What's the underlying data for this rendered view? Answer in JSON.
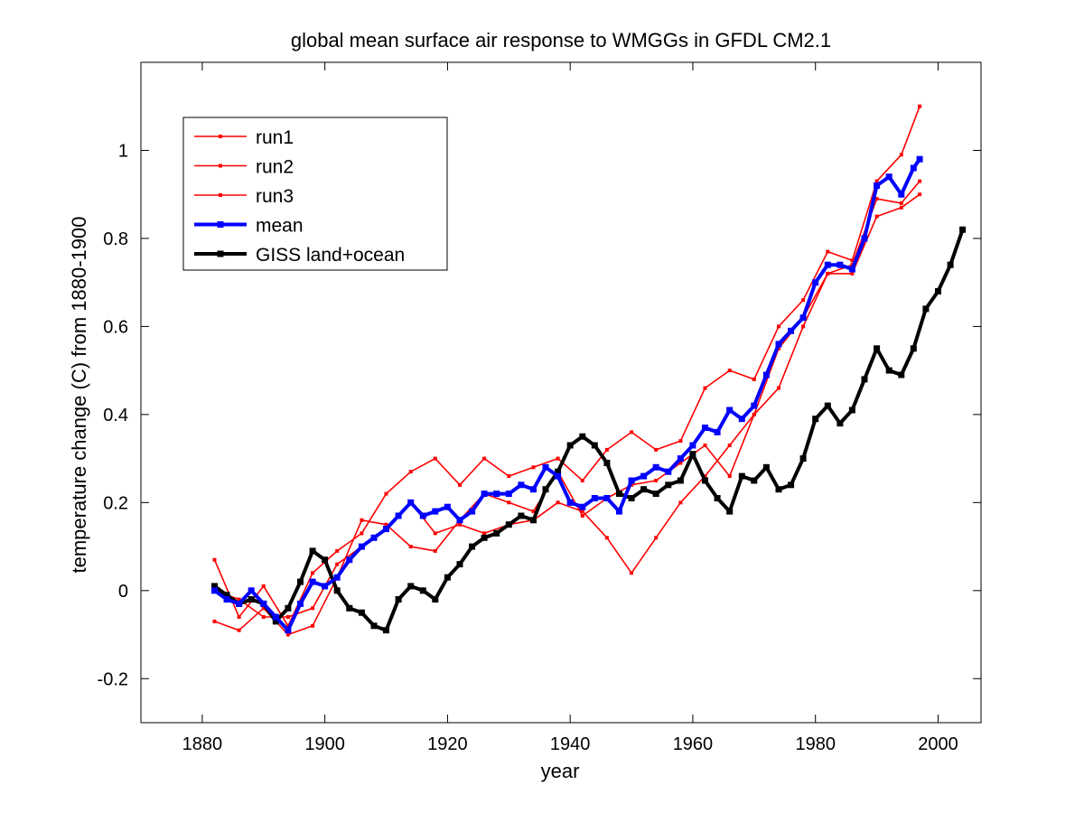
{
  "chart_data": {
    "type": "line",
    "title": "global mean surface air response to WMGGs in GFDL CM2.1",
    "xlabel": "year",
    "ylabel": "temperature change (C) from 1880-1900",
    "xlim": [
      1870,
      2007
    ],
    "ylim": [
      -0.3,
      1.2
    ],
    "xticks": [
      1880,
      1900,
      1920,
      1940,
      1960,
      1980,
      2000
    ],
    "yticks": [
      -0.2,
      0,
      0.2,
      0.4,
      0.6,
      0.8,
      1
    ],
    "ytick_labels": [
      "-0.2",
      "0",
      "0.2",
      "0.4",
      "0.6",
      "0.8",
      "1"
    ],
    "grid": false,
    "legend_position": "top-left",
    "series": [
      {
        "name": "run1",
        "color": "#ff0000",
        "style": "thin-square-markers",
        "x": [
          1882,
          1886,
          1890,
          1894,
          1898,
          1902,
          1906,
          1910,
          1914,
          1918,
          1922,
          1926,
          1930,
          1934,
          1938,
          1942,
          1946,
          1950,
          1954,
          1958,
          1962,
          1966,
          1970,
          1974,
          1978,
          1982,
          1986,
          1990,
          1994,
          1997
        ],
        "y": [
          0.07,
          -0.06,
          0.01,
          -0.08,
          0.04,
          0.09,
          0.13,
          0.22,
          0.27,
          0.3,
          0.24,
          0.3,
          0.26,
          0.28,
          0.3,
          0.25,
          0.32,
          0.36,
          0.32,
          0.34,
          0.46,
          0.5,
          0.48,
          0.6,
          0.66,
          0.77,
          0.75,
          0.93,
          0.99,
          1.1
        ]
      },
      {
        "name": "run2",
        "color": "#ff0000",
        "style": "thin-square-markers",
        "x": [
          1882,
          1886,
          1890,
          1894,
          1898,
          1902,
          1906,
          1910,
          1914,
          1918,
          1922,
          1926,
          1930,
          1934,
          1938,
          1942,
          1946,
          1950,
          1954,
          1958,
          1962,
          1966,
          1970,
          1974,
          1978,
          1982,
          1986,
          1990,
          1994,
          1997
        ],
        "y": [
          -0.07,
          -0.09,
          -0.04,
          -0.1,
          -0.08,
          0.03,
          0.16,
          0.15,
          0.1,
          0.09,
          0.16,
          0.22,
          0.2,
          0.18,
          0.27,
          0.17,
          0.21,
          0.24,
          0.25,
          0.29,
          0.33,
          0.26,
          0.4,
          0.46,
          0.6,
          0.72,
          0.74,
          0.89,
          0.88,
          0.93
        ]
      },
      {
        "name": "run3",
        "color": "#ff0000",
        "style": "thin-square-markers",
        "x": [
          1882,
          1886,
          1890,
          1894,
          1898,
          1902,
          1906,
          1910,
          1914,
          1918,
          1922,
          1926,
          1930,
          1934,
          1938,
          1942,
          1946,
          1950,
          1954,
          1958,
          1962,
          1966,
          1970,
          1974,
          1978,
          1982,
          1986,
          1990,
          1994,
          1997
        ],
        "y": [
          0.0,
          -0.02,
          -0.06,
          -0.06,
          -0.04,
          0.06,
          0.1,
          0.14,
          0.2,
          0.13,
          0.15,
          0.13,
          0.15,
          0.16,
          0.2,
          0.18,
          0.12,
          0.04,
          0.12,
          0.2,
          0.26,
          0.33,
          0.4,
          0.55,
          0.62,
          0.72,
          0.72,
          0.85,
          0.87,
          0.9
        ]
      },
      {
        "name": "mean",
        "color": "#0000ff",
        "style": "thick-square-markers",
        "x": [
          1882,
          1884,
          1886,
          1888,
          1890,
          1892,
          1894,
          1896,
          1898,
          1900,
          1902,
          1904,
          1906,
          1908,
          1910,
          1912,
          1914,
          1916,
          1918,
          1920,
          1922,
          1924,
          1926,
          1928,
          1930,
          1932,
          1934,
          1936,
          1938,
          1940,
          1942,
          1944,
          1946,
          1948,
          1950,
          1952,
          1954,
          1956,
          1958,
          1960,
          1962,
          1964,
          1966,
          1968,
          1970,
          1972,
          1974,
          1976,
          1978,
          1980,
          1982,
          1984,
          1986,
          1988,
          1990,
          1992,
          1994,
          1996,
          1997
        ],
        "y": [
          0.0,
          -0.02,
          -0.03,
          0.0,
          -0.03,
          -0.06,
          -0.09,
          -0.03,
          0.02,
          0.01,
          0.03,
          0.07,
          0.1,
          0.12,
          0.14,
          0.17,
          0.2,
          0.17,
          0.18,
          0.19,
          0.16,
          0.18,
          0.22,
          0.22,
          0.22,
          0.24,
          0.23,
          0.28,
          0.26,
          0.2,
          0.19,
          0.21,
          0.21,
          0.18,
          0.25,
          0.26,
          0.28,
          0.27,
          0.3,
          0.33,
          0.37,
          0.36,
          0.41,
          0.39,
          0.42,
          0.49,
          0.56,
          0.59,
          0.62,
          0.7,
          0.74,
          0.74,
          0.73,
          0.8,
          0.92,
          0.94,
          0.9,
          0.96,
          0.98
        ]
      },
      {
        "name": "GISS land+ocean",
        "color": "#000000",
        "style": "thick-square-markers",
        "x": [
          1882,
          1884,
          1886,
          1888,
          1890,
          1892,
          1894,
          1896,
          1898,
          1900,
          1902,
          1904,
          1906,
          1908,
          1910,
          1912,
          1914,
          1916,
          1918,
          1920,
          1922,
          1924,
          1926,
          1928,
          1930,
          1932,
          1934,
          1936,
          1938,
          1940,
          1942,
          1944,
          1946,
          1948,
          1950,
          1952,
          1954,
          1956,
          1958,
          1960,
          1962,
          1964,
          1966,
          1968,
          1970,
          1972,
          1974,
          1976,
          1978,
          1980,
          1982,
          1984,
          1986,
          1988,
          1990,
          1992,
          1994,
          1996,
          1998,
          2000,
          2002,
          2004
        ],
        "y": [
          0.01,
          -0.01,
          -0.03,
          -0.02,
          -0.03,
          -0.07,
          -0.04,
          0.02,
          0.09,
          0.07,
          0.0,
          -0.04,
          -0.05,
          -0.08,
          -0.09,
          -0.02,
          0.01,
          0.0,
          -0.02,
          0.03,
          0.06,
          0.1,
          0.12,
          0.13,
          0.15,
          0.17,
          0.16,
          0.23,
          0.27,
          0.33,
          0.35,
          0.33,
          0.29,
          0.22,
          0.21,
          0.23,
          0.22,
          0.24,
          0.25,
          0.31,
          0.25,
          0.21,
          0.18,
          0.26,
          0.25,
          0.28,
          0.23,
          0.24,
          0.3,
          0.39,
          0.42,
          0.38,
          0.41,
          0.48,
          0.55,
          0.5,
          0.49,
          0.55,
          0.64,
          0.68,
          0.74,
          0.82
        ]
      }
    ]
  }
}
